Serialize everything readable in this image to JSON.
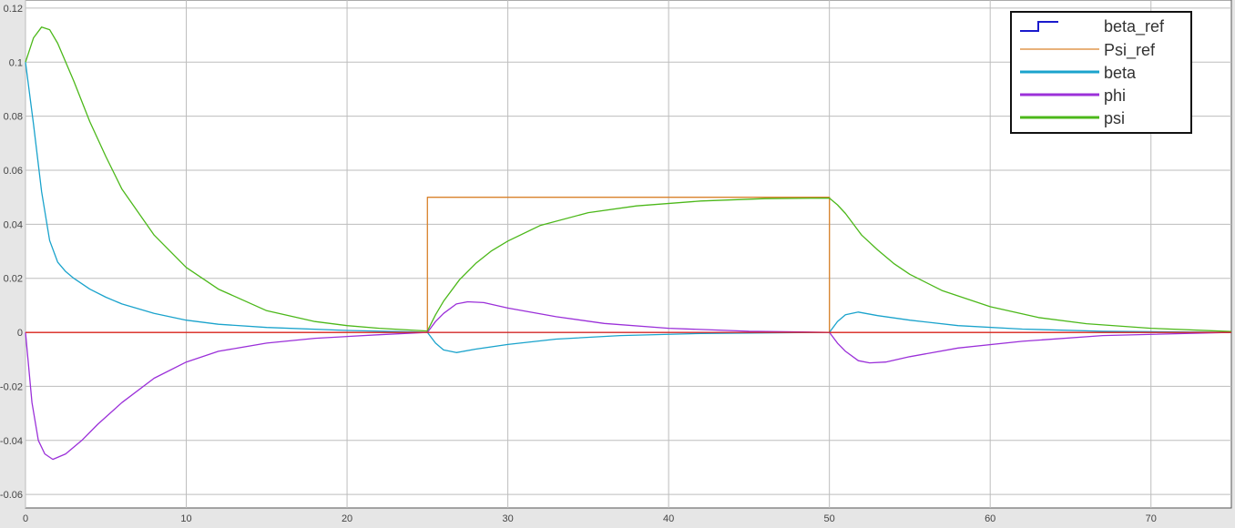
{
  "chart_data": {
    "type": "line",
    "title": "",
    "xlabel": "",
    "ylabel": "",
    "xlim": [
      0,
      75
    ],
    "ylim": [
      -0.065,
      0.123
    ],
    "grid": true,
    "legend_position": "top-right",
    "x_ticks": [
      "0",
      "10",
      "20",
      "30",
      "40",
      "50",
      "60",
      "70"
    ],
    "y_ticks": [
      "0.12",
      "0.1",
      "0.08",
      "0.06",
      "0.04",
      "0.02",
      "0",
      "-0.02",
      "-0.04",
      "-0.06"
    ],
    "colors": {
      "beta_ref": "#1a1acc",
      "Psi_ref": "#d9822b",
      "beta": "#1aa3cc",
      "phi": "#9b30d9",
      "psi": "#4cb81a",
      "zero_line": "#e02020"
    },
    "series": [
      {
        "name": "beta_ref",
        "style": "step",
        "x": [
          0,
          75
        ],
        "y": [
          0,
          0
        ]
      },
      {
        "name": "Psi_ref",
        "style": "step",
        "x": [
          0,
          25,
          25,
          50,
          50,
          75
        ],
        "y": [
          0,
          0,
          0.05,
          0.05,
          0,
          0
        ]
      },
      {
        "name": "beta",
        "x": [
          0,
          0.5,
          1,
          1.5,
          2,
          2.5,
          3,
          4,
          5,
          6,
          8,
          10,
          12,
          15,
          20,
          24,
          25,
          25.5,
          26,
          26.8,
          28,
          30,
          33,
          37,
          42,
          50,
          50.5,
          51,
          51.8,
          53,
          55,
          58,
          62,
          67,
          75
        ],
        "y": [
          0.1,
          0.077,
          0.052,
          0.034,
          0.026,
          0.0225,
          0.02,
          0.016,
          0.013,
          0.0105,
          0.007,
          0.0045,
          0.003,
          0.0018,
          0.0007,
          0.0002,
          0,
          -0.004,
          -0.0065,
          -0.0075,
          -0.0062,
          -0.0045,
          -0.0025,
          -0.0012,
          -0.0004,
          0,
          0.004,
          0.0065,
          0.0075,
          0.0062,
          0.0045,
          0.0025,
          0.0012,
          0.0004,
          0
        ]
      },
      {
        "name": "phi",
        "x": [
          0,
          0.4,
          0.8,
          1.2,
          1.7,
          2.5,
          3.5,
          4.5,
          6,
          8,
          10,
          12,
          15,
          18,
          22,
          25,
          25.5,
          26,
          26.8,
          27.5,
          28.5,
          30,
          33,
          36,
          40,
          45,
          50,
          50.5,
          51,
          51.8,
          52.5,
          53.5,
          55,
          58,
          62,
          67,
          75
        ],
        "y": [
          0,
          -0.026,
          -0.04,
          -0.045,
          -0.047,
          -0.045,
          -0.04,
          -0.034,
          -0.026,
          -0.017,
          -0.011,
          -0.007,
          -0.004,
          -0.0022,
          -0.0009,
          0,
          0.004,
          0.007,
          0.0105,
          0.0113,
          0.011,
          0.009,
          0.0058,
          0.0033,
          0.0015,
          0.0004,
          0,
          -0.004,
          -0.007,
          -0.0105,
          -0.0113,
          -0.011,
          -0.009,
          -0.0058,
          -0.0033,
          -0.0012,
          0
        ]
      },
      {
        "name": "psi",
        "x": [
          0,
          0.5,
          1,
          1.5,
          2,
          3,
          4,
          5,
          6,
          8,
          10,
          12,
          15,
          18,
          20,
          22,
          25,
          25.5,
          26,
          27,
          28,
          29,
          30,
          32,
          35,
          38,
          42,
          46,
          50,
          50.5,
          51,
          52,
          53,
          54,
          55,
          57,
          60,
          63,
          66,
          70,
          75
        ],
        "y": [
          0.1,
          0.109,
          0.113,
          0.112,
          0.107,
          0.093,
          0.078,
          0.065,
          0.053,
          0.036,
          0.024,
          0.016,
          0.008,
          0.004,
          0.0025,
          0.0015,
          0.0005,
          0.0065,
          0.0115,
          0.0195,
          0.0255,
          0.0302,
          0.0338,
          0.0395,
          0.0443,
          0.0468,
          0.0486,
          0.0495,
          0.0497,
          0.0472,
          0.044,
          0.036,
          0.0305,
          0.0255,
          0.0215,
          0.0155,
          0.0095,
          0.0055,
          0.0032,
          0.0015,
          0.0003
        ]
      }
    ]
  }
}
